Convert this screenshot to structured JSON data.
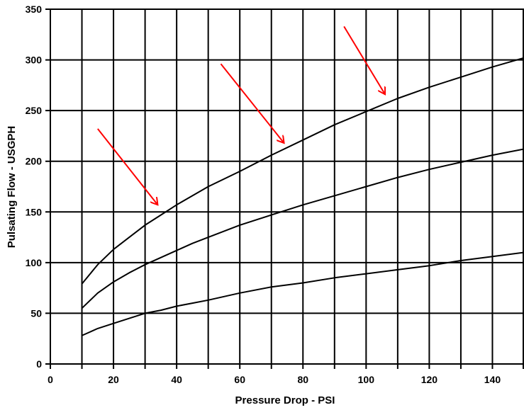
{
  "chart_data": {
    "type": "line",
    "title": "",
    "xlabel": "Pressure Drop - PSI",
    "ylabel": "Pulsating Flow - USGPH",
    "xlim": [
      0,
      150
    ],
    "ylim": [
      0,
      350
    ],
    "x_ticks": [
      0,
      20,
      40,
      60,
      80,
      100,
      120,
      140
    ],
    "y_ticks": [
      0,
      50,
      100,
      150,
      200,
      250,
      300,
      350
    ],
    "x_gridlines": [
      0,
      10,
      20,
      30,
      40,
      50,
      60,
      70,
      80,
      90,
      100,
      110,
      120,
      130,
      140,
      150
    ],
    "y_gridlines": [
      0,
      50,
      100,
      150,
      200,
      250,
      300,
      350
    ],
    "grid": true,
    "legend": "none",
    "line_color": "#000000",
    "series": [
      {
        "x": [
          10,
          15,
          20,
          25,
          30,
          35,
          40,
          45,
          50,
          60,
          70,
          80,
          90,
          100,
          110,
          120,
          130,
          140,
          150
        ],
        "values": [
          28,
          35,
          40,
          45,
          50,
          53,
          57,
          60,
          63,
          70,
          76,
          80,
          85,
          89,
          93,
          97,
          102,
          106,
          110
        ]
      },
      {
        "x": [
          10,
          15,
          20,
          25,
          30,
          35,
          40,
          45,
          50,
          60,
          70,
          80,
          90,
          100,
          110,
          120,
          130,
          140,
          150
        ],
        "values": [
          55,
          70,
          81,
          90,
          98,
          105,
          112,
          119,
          125,
          137,
          147,
          157,
          166,
          175,
          184,
          192,
          199,
          206,
          212
        ]
      },
      {
        "x": [
          10,
          15,
          20,
          25,
          30,
          35,
          40,
          45,
          50,
          60,
          70,
          80,
          90,
          100,
          110,
          120,
          130,
          140,
          150
        ],
        "values": [
          79,
          98,
          113,
          125,
          137,
          147,
          157,
          166,
          175,
          190,
          206,
          221,
          236,
          249,
          262,
          273,
          283,
          293,
          302
        ]
      }
    ],
    "annotations": [
      {
        "type": "arrow",
        "color": "#ff0000",
        "from": [
          15,
          232
        ],
        "to": [
          34,
          157
        ]
      },
      {
        "type": "arrow",
        "color": "#ff0000",
        "from": [
          54,
          296
        ],
        "to": [
          74,
          218
        ]
      },
      {
        "type": "arrow",
        "color": "#ff0000",
        "from": [
          93,
          333
        ],
        "to": [
          106,
          266
        ]
      }
    ]
  }
}
